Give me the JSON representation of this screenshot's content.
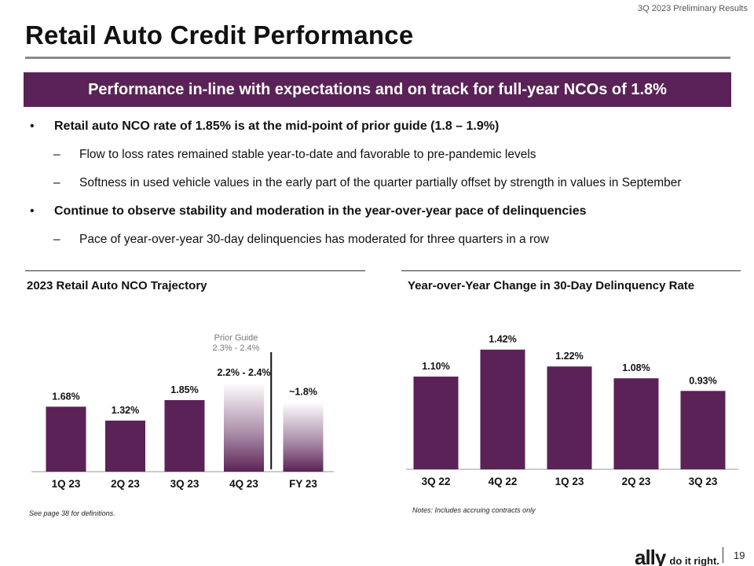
{
  "header": {
    "tag": "3Q 2023 Preliminary Results",
    "title": "Retail Auto Credit Performance"
  },
  "banner": "Performance in-line with expectations and on track for full-year NCOs of 1.8%",
  "bullets": [
    {
      "text": "Retail auto NCO rate of 1.85% is at the mid-point of prior guide (1.8 – 1.9%)",
      "subs": [
        "Flow to loss rates remained stable year-to-date and favorable to pre-pandemic levels",
        "Softness in used vehicle values in the early part of the quarter partially offset by strength in values in September"
      ]
    },
    {
      "text": "Continue to observe stability and moderation in the year-over-year pace of delinquencies",
      "subs": [
        "Pace of year-over-year 30-day delinquencies has moderated for three quarters in a row"
      ]
    }
  ],
  "bullet_glyph": "•",
  "dash_glyph": "–",
  "chart_data": [
    {
      "type": "bar",
      "title": "2023 Retail Auto NCO Trajectory",
      "categories": [
        "1Q 23",
        "2Q 23",
        "3Q 23",
        "4Q 23",
        "FY 23"
      ],
      "values": [
        1.68,
        1.32,
        1.85,
        2.3,
        1.8
      ],
      "labels": [
        "1.68%",
        "1.32%",
        "1.85%",
        "2.2% - 2.4%",
        "~1.8%"
      ],
      "estimate_categories": [
        "4Q 23",
        "FY 23"
      ],
      "annotation": {
        "line1": "Prior Guide",
        "line2": "2.3% - 2.4%"
      },
      "ylim": [
        0,
        2.5
      ],
      "color": "#5b2257",
      "note": "See page 38 for definitions."
    },
    {
      "type": "bar",
      "title": "Year-over-Year Change in 30-Day Delinquency Rate",
      "categories": [
        "3Q 22",
        "4Q 22",
        "1Q 23",
        "2Q 23",
        "3Q 23"
      ],
      "values": [
        1.1,
        1.42,
        1.22,
        1.08,
        0.93
      ],
      "labels": [
        "1.10%",
        "1.42%",
        "1.22%",
        "1.08%",
        "0.93%"
      ],
      "ylim": [
        0,
        1.8
      ],
      "color": "#5b2257",
      "note": "Notes: Includes accruing contracts only"
    }
  ],
  "footer": {
    "logo": "ally",
    "tagline": "do it right.",
    "page": "19"
  }
}
